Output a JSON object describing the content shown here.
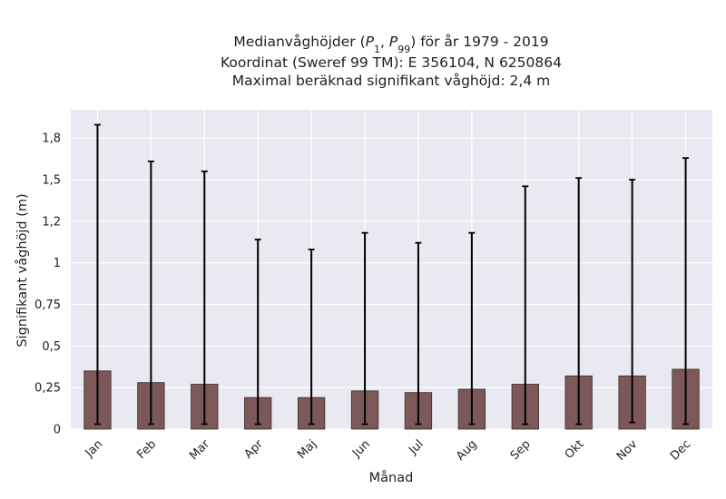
{
  "chart_data": {
    "type": "bar",
    "title_lines": [
      "Medianvåghöjder (P1, P99) för år 1979 - 2019",
      "Koordinat (Sweref 99 TM): E 356104, N 6250864",
      "Maximal beräknad signifikant våghöjd: 2,4 m"
    ],
    "title_math": {
      "p1_base": "P",
      "p1_sub": "1",
      "p99_base": "P",
      "p99_sub": "99"
    },
    "xlabel": "Månad",
    "ylabel": "Signifikant våghöjd (m)",
    "categories": [
      "Jan",
      "Feb",
      "Mar",
      "Apr",
      "Maj",
      "Jun",
      "Jul",
      "Aug",
      "Sep",
      "Okt",
      "Nov",
      "Dec"
    ],
    "values": [
      0.35,
      0.28,
      0.27,
      0.19,
      0.19,
      0.23,
      0.22,
      0.24,
      0.27,
      0.32,
      0.32,
      0.36
    ],
    "p1": [
      0.03,
      0.03,
      0.03,
      0.03,
      0.03,
      0.03,
      0.03,
      0.03,
      0.03,
      0.03,
      0.04,
      0.03
    ],
    "p99": [
      1.83,
      1.61,
      1.55,
      1.14,
      1.08,
      1.18,
      1.12,
      1.18,
      1.46,
      1.51,
      1.5,
      1.63
    ],
    "ylim": [
      0,
      1.92
    ],
    "yticks": [
      0,
      0.25,
      0.5,
      0.75,
      1,
      1.25,
      1.5,
      1.75
    ],
    "ytick_labels": [
      "0",
      "0,25",
      "0,5",
      "0,75",
      "1",
      "1,2",
      "1,5",
      "1,8"
    ],
    "grid": true,
    "colors": {
      "bar_fill": "#7d5858",
      "bar_edge": "#3a2a2a",
      "errorbar": "#000000",
      "plot_background": "#e9e9f1",
      "grid": "#ffffff"
    }
  }
}
